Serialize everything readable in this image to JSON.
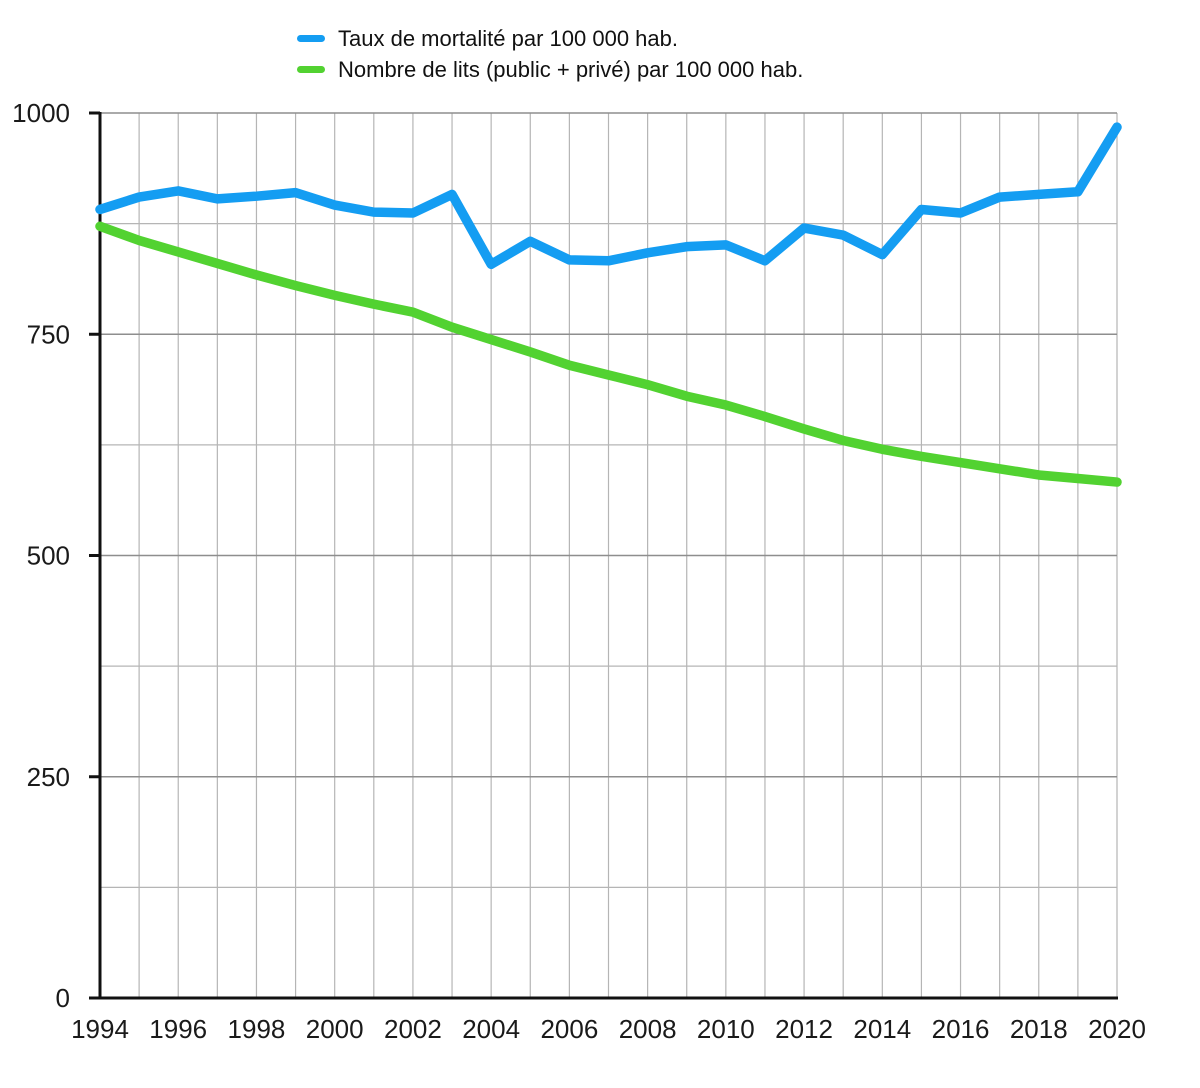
{
  "legend": {
    "items": [
      {
        "label": "Taux de mortalité par 100 000 hab.",
        "color": "#149df2"
      },
      {
        "label": "Nombre de lits (public + privé) par 100 000 hab.",
        "color": "#52d231"
      }
    ]
  },
  "chart_data": {
    "type": "line",
    "title": "",
    "xlabel": "",
    "ylabel": "",
    "x": [
      1994,
      1995,
      1996,
      1997,
      1998,
      1999,
      2000,
      2001,
      2002,
      2003,
      2004,
      2005,
      2006,
      2007,
      2008,
      2009,
      2010,
      2011,
      2012,
      2013,
      2014,
      2015,
      2016,
      2017,
      2018,
      2019,
      2020
    ],
    "series": [
      {
        "name": "Taux de mortalité par 100 000 hab.",
        "color": "#149df2",
        "values": [
          891,
          905,
          912,
          903,
          906,
          910,
          896,
          888,
          887,
          908,
          829,
          855,
          834,
          833,
          842,
          849,
          851,
          833,
          870,
          862,
          840,
          891,
          887,
          905,
          908,
          911,
          984
        ]
      },
      {
        "name": "Nombre de lits (public + privé) par 100 000 hab.",
        "color": "#52d231",
        "values": [
          872,
          856,
          843,
          830,
          817,
          805,
          794,
          784,
          775,
          758,
          744,
          730,
          715,
          704,
          693,
          680,
          670,
          657,
          643,
          630,
          620,
          612,
          605,
          598,
          591,
          587,
          583
        ]
      }
    ],
    "ylim": [
      0,
      1000
    ],
    "y_major_ticks": [
      0,
      250,
      500,
      750,
      1000
    ],
    "y_minor_ticks": [
      125,
      375,
      625,
      875
    ],
    "x_tick_labels": [
      1994,
      1996,
      1998,
      2000,
      2002,
      2004,
      2006,
      2008,
      2010,
      2012,
      2014,
      2016,
      2018,
      2020
    ],
    "grid": "both",
    "legend_position": "top-left",
    "axis_color": "#111111",
    "grid_major_color": "#8e8e8e",
    "grid_minor_color": "#b5b5b5",
    "tick_label_color": "#1a1a1a"
  }
}
